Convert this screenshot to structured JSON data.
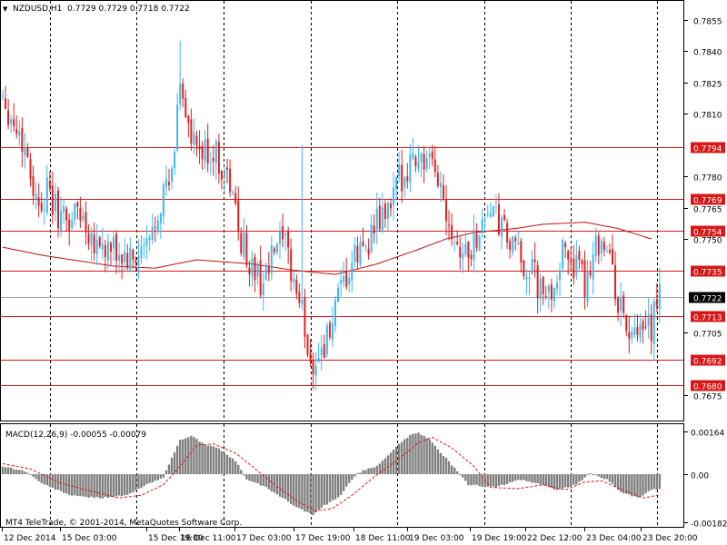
{
  "header": {
    "symbol_title": "NZDUSD,H1  0.7729 0.7729 0.7718 0.7722",
    "dropdown_glyph": "▼"
  },
  "indicator": {
    "macd_title": "MACD(12,26,9) -0.00055 -0.00079",
    "copyright": "MT4 TeleTrade, © 2001-2014, MetaQuotes Software Corp."
  },
  "colors": {
    "bull": "#3cb8f0",
    "bear": "#e02020",
    "level_line": "#d81818",
    "ma_line": "#c01010",
    "macd_hist": "#808080",
    "signal": "#e01818",
    "bid_line": "#9aaab8",
    "grid": "#000000"
  },
  "chart_data": [
    {
      "type": "candlestick",
      "symbol": "NZDUSD",
      "timeframe": "H1",
      "title": "NZDUSD,H1  0.7729 0.7729 0.7718 0.7722",
      "ylim": [
        0.7663,
        0.7864
      ],
      "y_ticks": [
        "0.7855",
        "0.7840",
        "0.7825",
        "0.7810",
        "0.7780",
        "0.7765",
        "0.7750",
        "0.7705",
        "0.7675"
      ],
      "x_ticks": [
        "12 Dec 2014",
        "15 Dec 03:00",
        "15 Dec 19:00",
        "16 Dec 11:00",
        "17 Dec 03:00",
        "17 Dec 19:00",
        "18 Dec 11:00",
        "19 Dec 03:00",
        "19 Dec 19:00",
        "22 Dec 12:00",
        "23 Dec 04:00",
        "23 Dec 20:00"
      ],
      "levels": [
        "0.7794",
        "0.7769",
        "0.7754",
        "0.7735",
        "0.7713",
        "0.7692",
        "0.7680"
      ],
      "current_price": "0.7722",
      "candle_count": 180,
      "grid": "vertical dashed",
      "anchors": [
        [
          0,
          0.782
        ],
        [
          3,
          0.7808
        ],
        [
          6,
          0.78
        ],
        [
          9,
          0.779
        ],
        [
          12,
          0.7768
        ],
        [
          16,
          0.7772
        ],
        [
          20,
          0.7762
        ],
        [
          24,
          0.7758
        ],
        [
          27,
          0.7765
        ],
        [
          32,
          0.7752
        ],
        [
          37,
          0.7745
        ],
        [
          42,
          0.7742
        ],
        [
          47,
          0.7738
        ],
        [
          53,
          0.7748
        ],
        [
          57,
          0.777
        ],
        [
          61,
          0.7778
        ],
        [
          64,
          0.7828
        ],
        [
          68,
          0.7795
        ],
        [
          72,
          0.779
        ],
        [
          76,
          0.7792
        ],
        [
          79,
          0.7785
        ],
        [
          82,
          0.7776
        ],
        [
          85,
          0.7755
        ],
        [
          89,
          0.7738
        ],
        [
          93,
          0.773
        ],
        [
          96,
          0.7735
        ],
        [
          99,
          0.7748
        ],
        [
          102,
          0.7745
        ],
        [
          105,
          0.773
        ],
        [
          108,
          0.7715
        ],
        [
          111,
          0.769
        ],
        [
          114,
          0.7695
        ],
        [
          117,
          0.7702
        ],
        [
          120,
          0.7715
        ],
        [
          124,
          0.773
        ],
        [
          127,
          0.774
        ],
        [
          131,
          0.7748
        ],
        [
          134,
          0.7755
        ],
        [
          137,
          0.776
        ],
        [
          140,
          0.7765
        ],
        [
          143,
          0.7778
        ],
        [
          147,
          0.7788
        ],
        [
          150,
          0.779
        ],
        [
          153,
          0.7785
        ],
        [
          157,
          0.778
        ],
        [
          160,
          0.7765
        ],
        [
          163,
          0.7752
        ],
        [
          166,
          0.7744
        ],
        [
          169,
          0.7745
        ],
        [
          172,
          0.7755
        ],
        [
          175,
          0.7765
        ],
        [
          178,
          0.776
        ],
        [
          181,
          0.7752
        ],
        [
          184,
          0.7745
        ],
        [
          188,
          0.7738
        ],
        [
          192,
          0.7732
        ],
        [
          195,
          0.772
        ],
        [
          198,
          0.7725
        ],
        [
          201,
          0.774
        ],
        [
          204,
          0.7745
        ],
        [
          207,
          0.7735
        ],
        [
          210,
          0.7728
        ],
        [
          213,
          0.7745
        ],
        [
          216,
          0.7752
        ],
        [
          219,
          0.774
        ],
        [
          222,
          0.772
        ],
        [
          225,
          0.7708
        ],
        [
          228,
          0.77
        ],
        [
          231,
          0.7704
        ],
        [
          234,
          0.7708
        ],
        [
          237,
          0.7722
        ]
      ],
      "ma": [
        [
          0,
          0.7746
        ],
        [
          15,
          0.7742
        ],
        [
          40,
          0.7737
        ],
        [
          55,
          0.7736
        ],
        [
          70,
          0.774
        ],
        [
          90,
          0.7738
        ],
        [
          105,
          0.7735
        ],
        [
          120,
          0.7733
        ],
        [
          135,
          0.7738
        ],
        [
          150,
          0.7745
        ],
        [
          160,
          0.775
        ],
        [
          170,
          0.7753
        ],
        [
          185,
          0.7755
        ],
        [
          195,
          0.7757
        ],
        [
          210,
          0.7758
        ],
        [
          222,
          0.7755
        ],
        [
          234,
          0.775
        ]
      ]
    },
    {
      "type": "bar",
      "name": "MACD(12,26,9)",
      "title": "MACD(12,26,9) -0.00055 -0.00079",
      "ylim": [
        -0.002,
        0.0019
      ],
      "y_ticks": [
        "0.00164",
        "0.00",
        "-0.00182"
      ],
      "macd_anchors": [
        [
          0,
          0.0003
        ],
        [
          8,
          0.00012
        ],
        [
          15,
          -0.0004
        ],
        [
          25,
          -0.00082
        ],
        [
          35,
          -0.0009
        ],
        [
          45,
          -0.0008
        ],
        [
          52,
          -0.0004
        ],
        [
          58,
          -0.0001
        ],
        [
          64,
          0.0013
        ],
        [
          68,
          0.00145
        ],
        [
          72,
          0.0012
        ],
        [
          78,
          0.00095
        ],
        [
          84,
          0.0005
        ],
        [
          88,
          -0.0002
        ],
        [
          95,
          -0.0005
        ],
        [
          101,
          -0.0009
        ],
        [
          106,
          -0.00125
        ],
        [
          112,
          -0.00155
        ],
        [
          116,
          -0.0012
        ],
        [
          121,
          -0.0009
        ],
        [
          128,
          5e-05
        ],
        [
          135,
          0.0003
        ],
        [
          141,
          0.00095
        ],
        [
          147,
          0.0015
        ],
        [
          150,
          0.0016
        ],
        [
          154,
          0.0013
        ],
        [
          160,
          0.0006
        ],
        [
          168,
          -0.0004
        ],
        [
          178,
          -0.0005
        ],
        [
          186,
          -0.0002
        ],
        [
          193,
          -0.00035
        ],
        [
          200,
          -0.0006
        ],
        [
          207,
          -0.0004
        ],
        [
          212,
          5e-05
        ],
        [
          218,
          -0.0002
        ],
        [
          224,
          -0.00075
        ],
        [
          230,
          -0.0009
        ],
        [
          234,
          -0.0006
        ],
        [
          237,
          -0.00055
        ]
      ],
      "signal_anchors": [
        [
          0,
          0.0004
        ],
        [
          10,
          0.0002
        ],
        [
          20,
          -0.0003
        ],
        [
          30,
          -0.0006
        ],
        [
          42,
          -0.0009
        ],
        [
          50,
          -0.0008
        ],
        [
          58,
          -0.0004
        ],
        [
          64,
          0.0003
        ],
        [
          70,
          0.0011
        ],
        [
          76,
          0.00115
        ],
        [
          84,
          0.0008
        ],
        [
          90,
          0.0003
        ],
        [
          98,
          -0.0004
        ],
        [
          106,
          -0.001
        ],
        [
          113,
          -0.0014
        ],
        [
          119,
          -0.0013
        ],
        [
          126,
          -0.0008
        ],
        [
          134,
          -0.0001
        ],
        [
          142,
          0.0005
        ],
        [
          150,
          0.0012
        ],
        [
          155,
          0.0014
        ],
        [
          162,
          0.001
        ],
        [
          170,
          0.0003
        ],
        [
          176,
          -0.0005
        ],
        [
          186,
          -0.00055
        ],
        [
          195,
          -0.0004
        ],
        [
          203,
          -0.0006
        ],
        [
          210,
          -0.0003
        ],
        [
          216,
          -0.00025
        ],
        [
          224,
          -0.0006
        ],
        [
          231,
          -0.0009
        ],
        [
          237,
          -0.00079
        ]
      ]
    }
  ]
}
